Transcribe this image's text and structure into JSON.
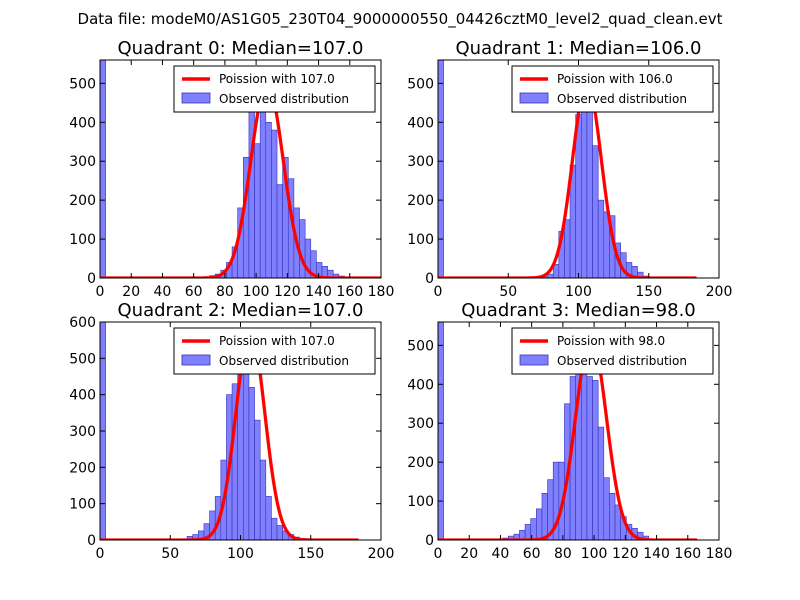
{
  "figure_title": "Data file: modeM0/AS1G05_230T04_9000000550_04426cztM0_level2_quad_clean.evt",
  "colors": {
    "bar_fill": "#8080ff",
    "bar_edge": "#3333bb",
    "fit_line": "#ff0000",
    "axes": "#000000"
  },
  "chart_data": [
    {
      "type": "bar",
      "title": "Quadrant 0: Median=107.0",
      "xlim": [
        0,
        180
      ],
      "ylim": [
        0,
        560
      ],
      "xticks": [
        0,
        20,
        40,
        60,
        80,
        100,
        120,
        140,
        160,
        180
      ],
      "yticks": [
        0,
        100,
        200,
        300,
        400,
        500
      ],
      "bin_width": 3.6,
      "spike": {
        "x": 0,
        "value": 560
      },
      "bins": [
        {
          "x": 68.4,
          "value": 3
        },
        {
          "x": 72,
          "value": 6
        },
        {
          "x": 75.6,
          "value": 10
        },
        {
          "x": 79.2,
          "value": 20
        },
        {
          "x": 82.8,
          "value": 40
        },
        {
          "x": 86.4,
          "value": 80
        },
        {
          "x": 90,
          "value": 180
        },
        {
          "x": 93.6,
          "value": 310
        },
        {
          "x": 97.2,
          "value": 440
        },
        {
          "x": 100.8,
          "value": 345
        },
        {
          "x": 104.4,
          "value": 500
        },
        {
          "x": 108,
          "value": 400
        },
        {
          "x": 111.6,
          "value": 380
        },
        {
          "x": 115.2,
          "value": 240
        },
        {
          "x": 118.8,
          "value": 310
        },
        {
          "x": 122.4,
          "value": 255
        },
        {
          "x": 126,
          "value": 180
        },
        {
          "x": 129.6,
          "value": 150
        },
        {
          "x": 133.2,
          "value": 100
        },
        {
          "x": 136.8,
          "value": 70
        },
        {
          "x": 140.4,
          "value": 40
        },
        {
          "x": 144,
          "value": 30
        },
        {
          "x": 147.6,
          "value": 20
        },
        {
          "x": 151.2,
          "value": 10
        },
        {
          "x": 154.8,
          "value": 5
        },
        {
          "x": 158.4,
          "value": 3
        }
      ],
      "fit": {
        "mean": 107.0,
        "peak": 500,
        "x_range": [
          0,
          184
        ]
      },
      "legend": [
        {
          "label": "Poission with 107.0",
          "kind": "line"
        },
        {
          "label": "Observed distribution",
          "kind": "patch"
        }
      ]
    },
    {
      "type": "bar",
      "title": "Quadrant 1: Median=106.0",
      "xlim": [
        0,
        200
      ],
      "ylim": [
        0,
        560
      ],
      "xticks": [
        0,
        50,
        100,
        150,
        200
      ],
      "yticks": [
        0,
        100,
        200,
        300,
        400,
        500
      ],
      "bin_width": 4,
      "spike": {
        "x": 0,
        "value": 560
      },
      "bins": [
        {
          "x": 76,
          "value": 3
        },
        {
          "x": 80,
          "value": 10
        },
        {
          "x": 84,
          "value": 35
        },
        {
          "x": 88,
          "value": 120
        },
        {
          "x": 92,
          "value": 150
        },
        {
          "x": 96,
          "value": 290
        },
        {
          "x": 100,
          "value": 420
        },
        {
          "x": 104,
          "value": 540
        },
        {
          "x": 108,
          "value": 440
        },
        {
          "x": 112,
          "value": 340
        },
        {
          "x": 116,
          "value": 200
        },
        {
          "x": 120,
          "value": 170
        },
        {
          "x": 124,
          "value": 160
        },
        {
          "x": 128,
          "value": 90
        },
        {
          "x": 132,
          "value": 65
        },
        {
          "x": 136,
          "value": 40
        },
        {
          "x": 140,
          "value": 30
        },
        {
          "x": 144,
          "value": 15
        },
        {
          "x": 148,
          "value": 5
        }
      ],
      "fit": {
        "mean": 106.0,
        "peak": 500,
        "x_range": [
          0,
          184
        ]
      },
      "legend": [
        {
          "label": "Poission with 106.0",
          "kind": "line"
        },
        {
          "label": "Observed distribution",
          "kind": "patch"
        }
      ]
    },
    {
      "type": "bar",
      "title": "Quadrant 2: Median=107.0",
      "xlim": [
        0,
        200
      ],
      "ylim": [
        0,
        600
      ],
      "xticks": [
        0,
        50,
        100,
        150,
        200
      ],
      "yticks": [
        0,
        100,
        200,
        300,
        400,
        500,
        600
      ],
      "bin_width": 4,
      "spike": {
        "x": 0,
        "value": 600
      },
      "bins": [
        {
          "x": 60,
          "value": 3
        },
        {
          "x": 64,
          "value": 10
        },
        {
          "x": 68,
          "value": 15
        },
        {
          "x": 72,
          "value": 25
        },
        {
          "x": 76,
          "value": 45
        },
        {
          "x": 80,
          "value": 80
        },
        {
          "x": 84,
          "value": 120
        },
        {
          "x": 88,
          "value": 220
        },
        {
          "x": 92,
          "value": 400
        },
        {
          "x": 96,
          "value": 430
        },
        {
          "x": 100,
          "value": 520
        },
        {
          "x": 104,
          "value": 580
        },
        {
          "x": 108,
          "value": 420
        },
        {
          "x": 112,
          "value": 330
        },
        {
          "x": 116,
          "value": 220
        },
        {
          "x": 120,
          "value": 120
        },
        {
          "x": 124,
          "value": 60
        },
        {
          "x": 128,
          "value": 40
        },
        {
          "x": 132,
          "value": 25
        },
        {
          "x": 136,
          "value": 15
        },
        {
          "x": 140,
          "value": 8
        },
        {
          "x": 144,
          "value": 4
        }
      ],
      "fit": {
        "mean": 107.0,
        "peak": 575,
        "x_range": [
          0,
          184
        ]
      },
      "legend": [
        {
          "label": "Poission with 107.0",
          "kind": "line"
        },
        {
          "label": "Observed distribution",
          "kind": "patch"
        }
      ]
    },
    {
      "type": "bar",
      "title": "Quadrant 3: Median=98.0",
      "xlim": [
        0,
        180
      ],
      "ylim": [
        0,
        560
      ],
      "xticks": [
        0,
        20,
        40,
        60,
        80,
        100,
        120,
        140,
        160,
        180
      ],
      "yticks": [
        0,
        100,
        200,
        300,
        400,
        500
      ],
      "bin_width": 3.6,
      "spike": {
        "x": 0,
        "value": 560
      },
      "bins": [
        {
          "x": 43.2,
          "value": 5
        },
        {
          "x": 46.8,
          "value": 10
        },
        {
          "x": 50.4,
          "value": 15
        },
        {
          "x": 54,
          "value": 25
        },
        {
          "x": 57.6,
          "value": 40
        },
        {
          "x": 61.2,
          "value": 55
        },
        {
          "x": 64.8,
          "value": 80
        },
        {
          "x": 68.4,
          "value": 120
        },
        {
          "x": 72,
          "value": 155
        },
        {
          "x": 75.6,
          "value": 200
        },
        {
          "x": 79.2,
          "value": 200
        },
        {
          "x": 82.8,
          "value": 350
        },
        {
          "x": 86.4,
          "value": 420
        },
        {
          "x": 90,
          "value": 440
        },
        {
          "x": 93.6,
          "value": 490
        },
        {
          "x": 97.2,
          "value": 420
        },
        {
          "x": 100.8,
          "value": 410
        },
        {
          "x": 104.4,
          "value": 290
        },
        {
          "x": 108,
          "value": 160
        },
        {
          "x": 111.6,
          "value": 120
        },
        {
          "x": 115.2,
          "value": 90
        },
        {
          "x": 118.8,
          "value": 60
        },
        {
          "x": 122.4,
          "value": 40
        },
        {
          "x": 126,
          "value": 30
        },
        {
          "x": 129.6,
          "value": 20
        },
        {
          "x": 133.2,
          "value": 10
        }
      ],
      "fit": {
        "mean": 98.0,
        "peak": 520,
        "x_range": [
          0,
          166
        ]
      },
      "legend": [
        {
          "label": "Poission with 98.0",
          "kind": "line"
        },
        {
          "label": "Observed distribution",
          "kind": "patch"
        }
      ]
    }
  ]
}
